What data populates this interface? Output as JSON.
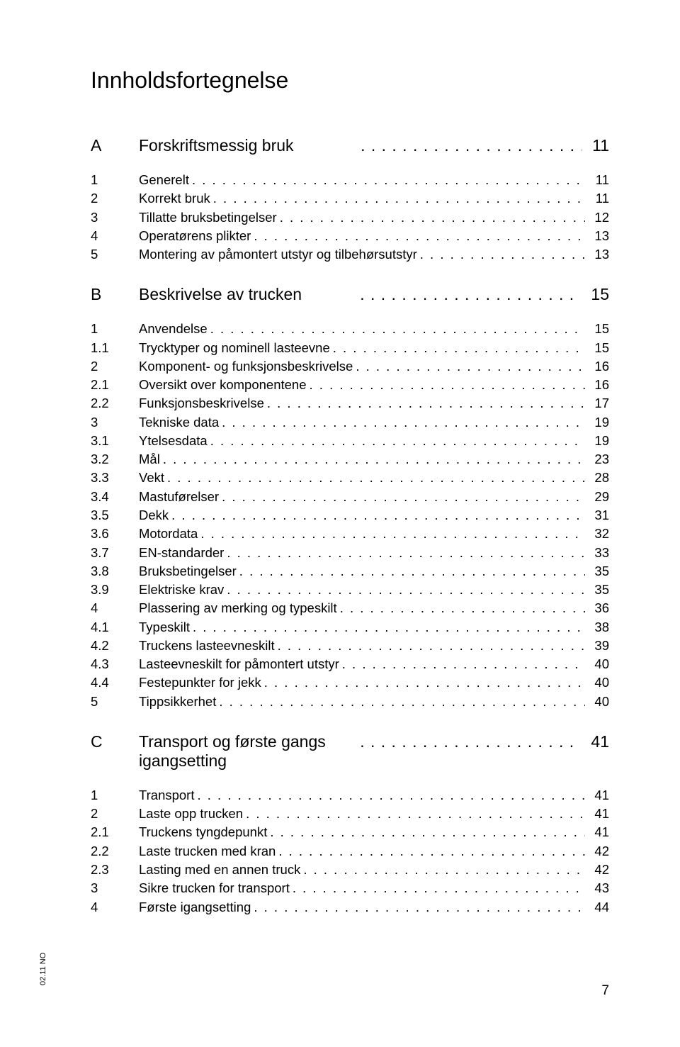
{
  "title": "Innholdsfortegnelse",
  "colors": {
    "text": "#000000",
    "background": "#ffffff"
  },
  "typography": {
    "title_fontsize": 32,
    "section_fontsize": 23,
    "line_fontsize": 18.5,
    "footer_fontsize": 11
  },
  "footer": {
    "side_text": "02.11 NO",
    "page_number": "7"
  },
  "sections": [
    {
      "letter": "A",
      "title": "Forskriftsmessig bruk",
      "page": "11",
      "entries": [
        {
          "num": "1",
          "label": "Generelt",
          "page": "11"
        },
        {
          "num": "2",
          "label": "Korrekt bruk",
          "page": "11"
        },
        {
          "num": "3",
          "label": "Tillatte bruksbetingelser",
          "page": "12"
        },
        {
          "num": "4",
          "label": "Operatørens plikter",
          "page": "13"
        },
        {
          "num": "5",
          "label": "Montering av påmontert utstyr og tilbehørsutstyr",
          "page": "13"
        }
      ]
    },
    {
      "letter": "B",
      "title": "Beskrivelse av trucken",
      "page": "15",
      "entries": [
        {
          "num": "1",
          "label": "Anvendelse",
          "page": "15"
        },
        {
          "num": "1.1",
          "label": "Trycktyper og nominell lasteevne",
          "page": "15"
        },
        {
          "num": "2",
          "label": "Komponent- og funksjonsbeskrivelse",
          "page": "16"
        },
        {
          "num": "2.1",
          "label": "Oversikt over komponentene",
          "page": "16"
        },
        {
          "num": "2.2",
          "label": "Funksjonsbeskrivelse",
          "page": "17"
        },
        {
          "num": "3",
          "label": "Tekniske data",
          "page": "19"
        },
        {
          "num": "3.1",
          "label": "Ytelsesdata",
          "page": "19"
        },
        {
          "num": "3.2",
          "label": "Mål",
          "page": "23"
        },
        {
          "num": "3.3",
          "label": "Vekt",
          "page": "28"
        },
        {
          "num": "3.4",
          "label": "Mastuførelser",
          "page": "29"
        },
        {
          "num": "3.5",
          "label": "Dekk",
          "page": "31"
        },
        {
          "num": "3.6",
          "label": "Motordata",
          "page": "32"
        },
        {
          "num": "3.7",
          "label": "EN-standarder",
          "page": "33"
        },
        {
          "num": "3.8",
          "label": "Bruksbetingelser",
          "page": "35"
        },
        {
          "num": "3.9",
          "label": "Elektriske krav",
          "page": "35"
        },
        {
          "num": "4",
          "label": "Plassering av merking og typeskilt",
          "page": "36"
        },
        {
          "num": "4.1",
          "label": "Typeskilt",
          "page": "38"
        },
        {
          "num": "4.2",
          "label": "Truckens lasteevneskilt",
          "page": "39"
        },
        {
          "num": "4.3",
          "label": "Lasteevneskilt for påmontert utstyr",
          "page": "40"
        },
        {
          "num": "4.4",
          "label": "Festepunkter for jekk",
          "page": "40"
        },
        {
          "num": "5",
          "label": "Tippsikkerhet",
          "page": "40"
        }
      ]
    },
    {
      "letter": "C",
      "title": "Transport og første gangs igangsetting",
      "page": "41",
      "entries": [
        {
          "num": "1",
          "label": "Transport",
          "page": "41"
        },
        {
          "num": "2",
          "label": "Laste opp trucken",
          "page": "41"
        },
        {
          "num": "2.1",
          "label": "Truckens tyngdepunkt",
          "page": "41"
        },
        {
          "num": "2.2",
          "label": "Laste trucken med kran",
          "page": "42"
        },
        {
          "num": "2.3",
          "label": "Lasting med en annen truck",
          "page": "42"
        },
        {
          "num": "3",
          "label": "Sikre trucken for transport",
          "page": "43"
        },
        {
          "num": "4",
          "label": "Første igangsetting",
          "page": "44"
        }
      ]
    }
  ]
}
